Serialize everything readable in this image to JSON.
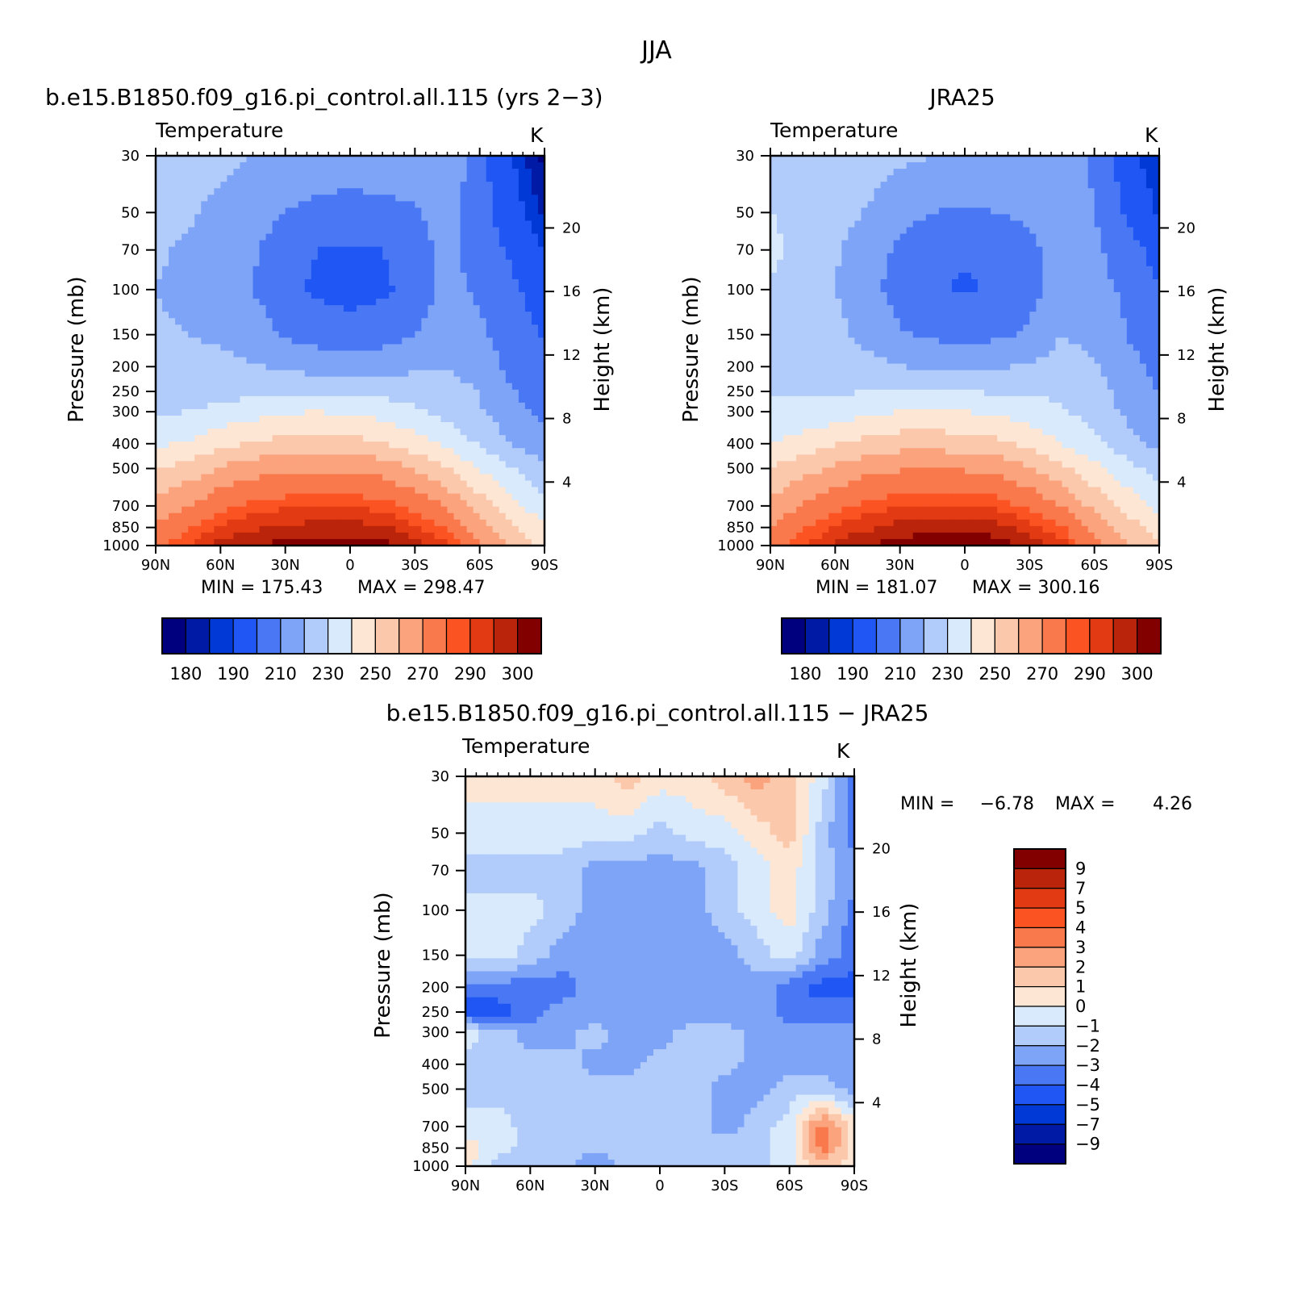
{
  "figure": {
    "title": "JJA"
  },
  "colors": {
    "blue_red_16": [
      "#00007f",
      "#001aa6",
      "#0039d6",
      "#1f56f4",
      "#4a78f5",
      "#7ea4f8",
      "#b1cbfa",
      "#d9eafc",
      "#fde6d4",
      "#fcc8ac",
      "#fba37d",
      "#f9794d",
      "#fb5322",
      "#e23a12",
      "#b9240a",
      "#820000"
    ],
    "diff_14": [
      "#00007f",
      "#001aa6",
      "#0039d6",
      "#1f56f4",
      "#4a78f5",
      "#7ea4f8",
      "#b1cbfa",
      "#d9eafc",
      "#fde6d4",
      "#fcc8ac",
      "#fba37d",
      "#f9794d",
      "#fb5322",
      "#e23a12",
      "#b9240a",
      "#820000"
    ]
  },
  "chart_data": [
    {
      "type": "heatmap",
      "panel_title": "b.e15.B1850.f09_g16.pi_control.all.115 (yrs 2−3)",
      "field_label": "Temperature",
      "units": "K",
      "xlabel": "",
      "ylabel": "Pressure (mb)",
      "y2label": "Height (km)",
      "x_ticks": [
        "90N",
        "60N",
        "30N",
        "0",
        "30S",
        "60S",
        "90S"
      ],
      "y_ticks": [
        30,
        50,
        70,
        100,
        150,
        200,
        250,
        300,
        400,
        500,
        700,
        850,
        1000
      ],
      "y2_ticks": [
        20,
        16,
        12,
        8,
        4
      ],
      "y_scale": "log",
      "ylim": [
        1000,
        30
      ],
      "min_label": "MIN = 175.43",
      "max_label": "MAX = 298.47",
      "colorbar_labels": [
        "180",
        "190",
        "210",
        "230",
        "250",
        "270",
        "290",
        "300"
      ],
      "levels": [
        180,
        185,
        190,
        200,
        210,
        220,
        230,
        240,
        250,
        260,
        270,
        280,
        285,
        290,
        295,
        300
      ],
      "lats": [
        90,
        75,
        60,
        45,
        30,
        15,
        0,
        -15,
        -30,
        -45,
        -60,
        -75,
        -90
      ],
      "pressures": [
        1000,
        850,
        700,
        500,
        400,
        300,
        250,
        200,
        150,
        100,
        70,
        50,
        30
      ],
      "values": [
        [
          277,
          285,
          292,
          295,
          297,
          298,
          298,
          297,
          293,
          287,
          270,
          258,
          247
        ],
        [
          272,
          279,
          286,
          289,
          291,
          292,
          292,
          291,
          286,
          279,
          265,
          252,
          242
        ],
        [
          264,
          270,
          278,
          282,
          284,
          285,
          285,
          283,
          277,
          269,
          255,
          243,
          233
        ],
        [
          249,
          254,
          261,
          266,
          268,
          269,
          268,
          266,
          259,
          250,
          240,
          230,
          222
        ],
        [
          238,
          241,
          247,
          251,
          254,
          255,
          254,
          251,
          245,
          237,
          229,
          220,
          213
        ],
        [
          228,
          230,
          233,
          236,
          239,
          240,
          238,
          236,
          232,
          227,
          221,
          213,
          207
        ],
        [
          224,
          225,
          226,
          228,
          229,
          229,
          228,
          227,
          226,
          224,
          220,
          211,
          205
        ],
        [
          222,
          222,
          222,
          221,
          218,
          216,
          215,
          216,
          218,
          220,
          215,
          207,
          202
        ],
        [
          221,
          220,
          219,
          215,
          209,
          206,
          205,
          206,
          210,
          217,
          212,
          205,
          199
        ],
        [
          220,
          218,
          215,
          210,
          203,
          198,
          196,
          198,
          204,
          213,
          208,
          202,
          195
        ],
        [
          221,
          219,
          216,
          211,
          205,
          200,
          199,
          200,
          205,
          213,
          206,
          198,
          190
        ],
        [
          223,
          221,
          218,
          214,
          210,
          207,
          206,
          207,
          209,
          215,
          204,
          194,
          184
        ],
        [
          226,
          224,
          222,
          220,
          218,
          216,
          216,
          216,
          217,
          218,
          203,
          190,
          178
        ]
      ]
    },
    {
      "type": "heatmap",
      "panel_title": "JRA25",
      "field_label": "Temperature",
      "units": "K",
      "xlabel": "",
      "ylabel": "Pressure (mb)",
      "y2label": "Height (km)",
      "x_ticks": [
        "90N",
        "60N",
        "30N",
        "0",
        "30S",
        "60S",
        "90S"
      ],
      "y_ticks": [
        30,
        50,
        70,
        100,
        150,
        200,
        250,
        300,
        400,
        500,
        700,
        850,
        1000
      ],
      "y2_ticks": [
        20,
        16,
        12,
        8,
        4
      ],
      "y_scale": "log",
      "ylim": [
        1000,
        30
      ],
      "min_label": "MIN = 181.07",
      "max_label": "MAX = 300.16",
      "colorbar_labels": [
        "180",
        "190",
        "210",
        "230",
        "250",
        "270",
        "290",
        "300"
      ],
      "levels": [
        180,
        185,
        190,
        200,
        210,
        220,
        230,
        240,
        250,
        260,
        270,
        280,
        285,
        290,
        295,
        300
      ],
      "lats": [
        90,
        75,
        60,
        45,
        30,
        15,
        0,
        -15,
        -30,
        -45,
        -60,
        -75,
        -90
      ],
      "pressures": [
        1000,
        850,
        700,
        500,
        400,
        300,
        250,
        200,
        150,
        100,
        70,
        50,
        30
      ],
      "values": [
        [
          275,
          284,
          291,
          295,
          297,
          299,
          299,
          298,
          294,
          288,
          272,
          262,
          250
        ],
        [
          270,
          279,
          286,
          289,
          292,
          293,
          293,
          292,
          287,
          281,
          267,
          255,
          245
        ],
        [
          263,
          271,
          278,
          282,
          285,
          286,
          286,
          284,
          278,
          270,
          257,
          246,
          237
        ],
        [
          250,
          256,
          262,
          267,
          269,
          270,
          269,
          267,
          261,
          252,
          243,
          234,
          226
        ],
        [
          240,
          244,
          249,
          253,
          256,
          256,
          255,
          253,
          247,
          240,
          232,
          224,
          217
        ],
        [
          232,
          233,
          235,
          238,
          240,
          241,
          240,
          238,
          235,
          231,
          226,
          218,
          211
        ],
        [
          229,
          229,
          229,
          230,
          230,
          230,
          230,
          229,
          229,
          228,
          224,
          216,
          210
        ],
        [
          228,
          227,
          225,
          223,
          220,
          219,
          218,
          219,
          221,
          224,
          221,
          213,
          207
        ],
        [
          227,
          226,
          223,
          217,
          211,
          208,
          207,
          208,
          212,
          220,
          217,
          210,
          204
        ],
        [
          229,
          225,
          220,
          213,
          206,
          201,
          199,
          201,
          206,
          215,
          214,
          208,
          200
        ],
        [
          232,
          227,
          221,
          215,
          208,
          203,
          201,
          202,
          207,
          215,
          212,
          204,
          196
        ],
        [
          230,
          228,
          224,
          219,
          213,
          210,
          209,
          210,
          212,
          216,
          210,
          199,
          189
        ],
        [
          230,
          229,
          228,
          225,
          222,
          220,
          219,
          219,
          220,
          219,
          208,
          194,
          184
        ]
      ]
    },
    {
      "type": "heatmap",
      "panel_title": "b.e15.B1850.f09_g16.pi_control.all.115 − JRA25",
      "field_label": "Temperature",
      "units": "K",
      "xlabel": "",
      "ylabel": "Pressure (mb)",
      "y2label": "Height (km)",
      "x_ticks": [
        "90N",
        "60N",
        "30N",
        "0",
        "30S",
        "60S",
        "90S"
      ],
      "y_ticks": [
        30,
        50,
        70,
        100,
        150,
        200,
        250,
        300,
        400,
        500,
        700,
        850,
        1000
      ],
      "y2_ticks": [
        20,
        16,
        12,
        8,
        4
      ],
      "y_scale": "log",
      "ylim": [
        1000,
        30
      ],
      "min_label": "MIN =",
      "min_value": "−6.78",
      "max_label": "MAX =",
      "max_value": "4.26",
      "colorbar_labels": [
        "9",
        "7",
        "5",
        "4",
        "3",
        "2",
        "1",
        "0",
        "−1",
        "−2",
        "−3",
        "−4",
        "−5",
        "−7",
        "−9"
      ],
      "levels": [
        -9,
        -7,
        -5,
        -4,
        -3,
        -2,
        -1,
        0,
        1,
        2,
        3,
        4,
        5,
        7,
        9
      ],
      "lats": [
        90,
        75,
        60,
        45,
        30,
        15,
        0,
        -15,
        -30,
        -45,
        -60,
        -75,
        -90
      ],
      "pressures": [
        1000,
        850,
        700,
        500,
        400,
        300,
        250,
        200,
        150,
        100,
        70,
        50,
        30
      ],
      "values": [
        [
          0.5,
          -1.5,
          -1.5,
          -1.5,
          -3.2,
          -1.5,
          -1.5,
          -1.5,
          -1.2,
          -1.5,
          -0.5,
          1.5,
          0.5
        ],
        [
          0.5,
          -0.5,
          -1.5,
          -1.5,
          -1.5,
          -1.5,
          -1.5,
          -1.5,
          -1.5,
          -1.5,
          -0.5,
          3.5,
          0.5
        ],
        [
          -0.5,
          -0.5,
          -1.5,
          -1.5,
          -1.5,
          -1.5,
          -1.5,
          -1.5,
          -2.5,
          -1.5,
          -0.5,
          3.5,
          0.5
        ],
        [
          -1.5,
          -1.5,
          -1.5,
          -1.5,
          -1.5,
          -1.5,
          -1.5,
          -1.5,
          -2.5,
          -2.5,
          -1.5,
          -1.5,
          -2.5
        ],
        [
          -1.5,
          -1.5,
          -1.5,
          -1.5,
          -2.5,
          -2.5,
          -1.5,
          -1.5,
          -1.5,
          -2.5,
          -2.5,
          -2.5,
          -2.5
        ],
        [
          -0.5,
          -1.5,
          -2.5,
          -2.5,
          -1.5,
          -2.5,
          -2.5,
          -1.5,
          -1.5,
          -2.5,
          -2.5,
          -2.5,
          -2.5
        ],
        [
          -4.5,
          -4.5,
          -3.5,
          -2.5,
          -2.5,
          -2.5,
          -2.5,
          -2.5,
          -2.5,
          -2.5,
          -3.5,
          -3.5,
          -3.5
        ],
        [
          -3.5,
          -3.5,
          -3.5,
          -3.5,
          -2.5,
          -2.5,
          -2.5,
          -2.5,
          -2.5,
          -2.5,
          -3.5,
          -4.5,
          -4.5
        ],
        [
          -0.5,
          -0.5,
          -1.5,
          -2.5,
          -2.5,
          -2.5,
          -2.5,
          -2.5,
          -2.5,
          -1.5,
          -0.5,
          -2.5,
          -3.5
        ],
        [
          -0.5,
          -0.5,
          -0.5,
          -1.5,
          -2.5,
          -2.5,
          -2.5,
          -2.5,
          -1.5,
          -0.5,
          0.5,
          -1.5,
          -3.5
        ],
        [
          -1.5,
          -1.5,
          -1.5,
          -1.5,
          -2.5,
          -2.5,
          -2.5,
          -2.5,
          -1.5,
          -0.5,
          0.5,
          -1.5,
          -2.5
        ],
        [
          -0.5,
          -0.5,
          -0.5,
          -0.5,
          -0.5,
          -0.5,
          -1.5,
          -0.5,
          -0.5,
          0.5,
          1.5,
          -1.5,
          -3.5
        ],
        [
          0.5,
          0.5,
          0.5,
          0.5,
          0.5,
          1.5,
          0.5,
          0.5,
          1.5,
          2.5,
          1.5,
          -0.5,
          -3.5
        ]
      ]
    }
  ]
}
